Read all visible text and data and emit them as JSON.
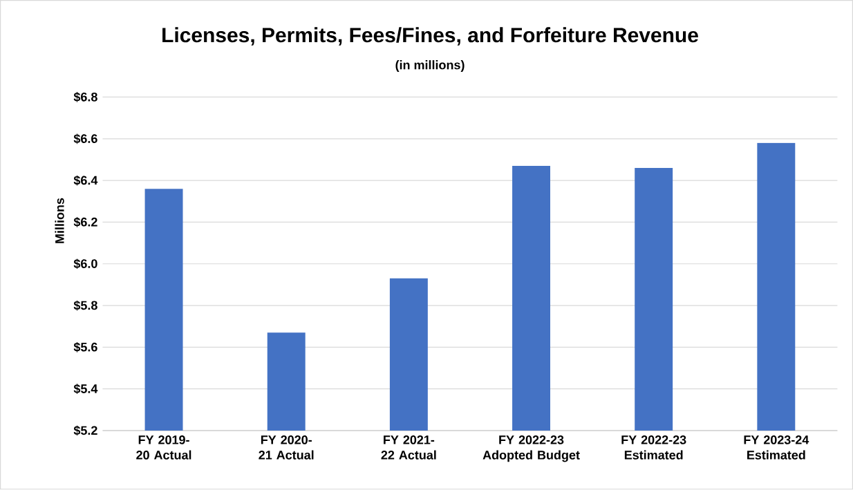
{
  "chart_data": {
    "type": "bar",
    "title": "Licenses, Permits, Fees/Fines, and Forfeiture Revenue",
    "subtitle": "(in millions)",
    "ylabel": "Millions",
    "categories": [
      "FY 2019-20 Actual",
      "FY 2020-21 Actual",
      "FY 2021-22 Actual",
      "FY 2022-23 Adopted Budget",
      "FY 2022-23 Estimated",
      "FY 2023-24 Estimated"
    ],
    "values": [
      6.36,
      5.67,
      5.93,
      6.47,
      6.46,
      6.58
    ],
    "color": "#4472c4",
    "ylim": [
      5.2,
      6.8
    ],
    "yticks": [
      {
        "value": 5.2,
        "label": "$5.2"
      },
      {
        "value": 5.4,
        "label": "$5.4"
      },
      {
        "value": 5.6,
        "label": "$5.6"
      },
      {
        "value": 5.8,
        "label": "$5.8"
      },
      {
        "value": 6.0,
        "label": "$6.0"
      },
      {
        "value": 6.2,
        "label": "$6.2"
      },
      {
        "value": 6.4,
        "label": "$6.4"
      },
      {
        "value": 6.6,
        "label": "$6.6"
      },
      {
        "value": 6.8,
        "label": "$6.8"
      }
    ],
    "grid": "y"
  }
}
